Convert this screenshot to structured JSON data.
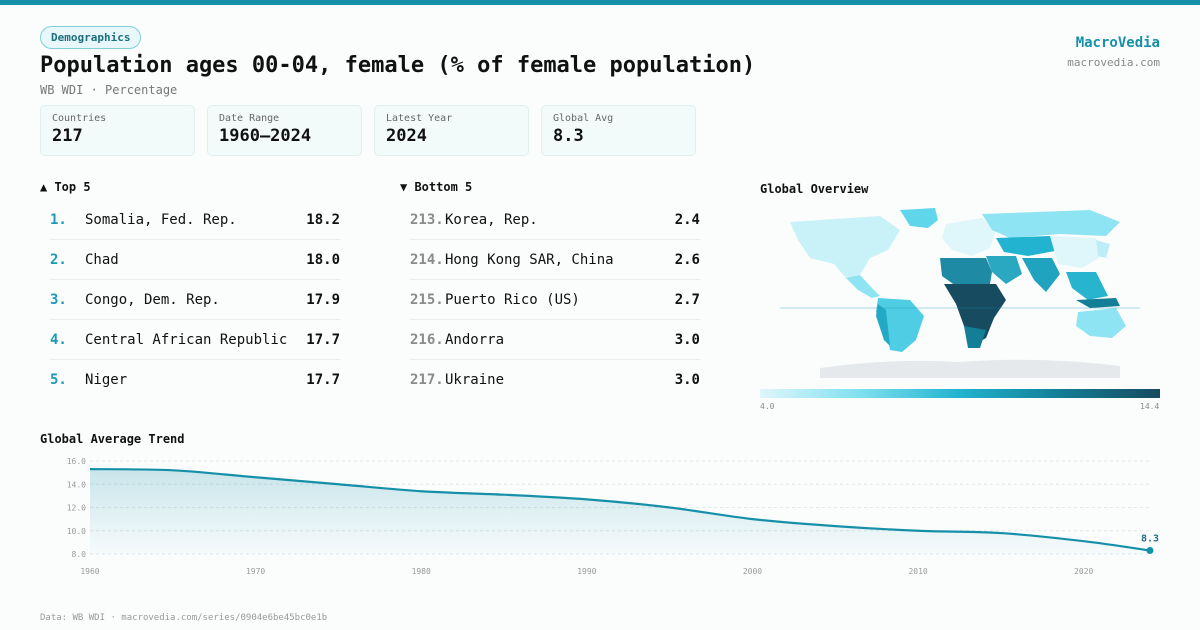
{
  "header": {
    "tag": "Demographics",
    "title": "Population ages 00-04, female (% of female population)",
    "subtitle": "WB WDI · Percentage"
  },
  "brand": {
    "name": "MacroVedia",
    "url": "macrovedia.com"
  },
  "stats": [
    {
      "label": "Countries",
      "value": "217"
    },
    {
      "label": "Date Range",
      "value": "1960–2024"
    },
    {
      "label": "Latest Year",
      "value": "2024"
    },
    {
      "label": "Global Avg",
      "value": "8.3"
    }
  ],
  "top5": {
    "heading": "▲ Top 5",
    "items": [
      {
        "rank": "1.",
        "name": "Somalia, Fed. Rep.",
        "value": "18.2"
      },
      {
        "rank": "2.",
        "name": "Chad",
        "value": "18.0"
      },
      {
        "rank": "3.",
        "name": "Congo, Dem. Rep.",
        "value": "17.9"
      },
      {
        "rank": "4.",
        "name": "Central African Republic",
        "value": "17.7"
      },
      {
        "rank": "5.",
        "name": "Niger",
        "value": "17.7"
      }
    ]
  },
  "bottom5": {
    "heading": "▼ Bottom 5",
    "items": [
      {
        "rank": "213.",
        "name": "Korea, Rep.",
        "value": "2.4"
      },
      {
        "rank": "214.",
        "name": "Hong Kong SAR, China",
        "value": "2.6"
      },
      {
        "rank": "215.",
        "name": "Puerto Rico (US)",
        "value": "2.7"
      },
      {
        "rank": "216.",
        "name": "Andorra",
        "value": "3.0"
      },
      {
        "rank": "217.",
        "name": "Ukraine",
        "value": "3.0"
      }
    ]
  },
  "map": {
    "title": "Global Overview",
    "legend_min": "4.0",
    "legend_max": "14.4",
    "colors": {
      "low": "#dff6fb",
      "mid": "#21b3cf",
      "high": "#174b5f",
      "nodata": "#e6e9ec"
    }
  },
  "trend": {
    "title": "Global Average Trend"
  },
  "footer": "Data: WB WDI · macrovedia.com/series/0904e6be45bc0e1b",
  "chart_data": {
    "type": "area",
    "title": "Global Average Trend",
    "x": [
      1960,
      1965,
      1970,
      1975,
      1980,
      1985,
      1990,
      1995,
      2000,
      2005,
      2010,
      2015,
      2020,
      2024
    ],
    "series": [
      {
        "values": [
          15.3,
          15.2,
          14.6,
          14.0,
          13.4,
          13.1,
          12.7,
          12.0,
          11.0,
          10.4,
          10.0,
          9.8,
          9.1,
          8.3
        ]
      }
    ],
    "xticks": [
      1960,
      1970,
      1980,
      1990,
      2000,
      2010,
      2020
    ],
    "yticks": [
      8.0,
      10.0,
      12.0,
      14.0,
      16.0
    ],
    "ylim": [
      8.0,
      16.0
    ],
    "xlim": [
      1960,
      2024
    ],
    "end_label": "8.3",
    "grid": true,
    "color": "#1690a8"
  }
}
